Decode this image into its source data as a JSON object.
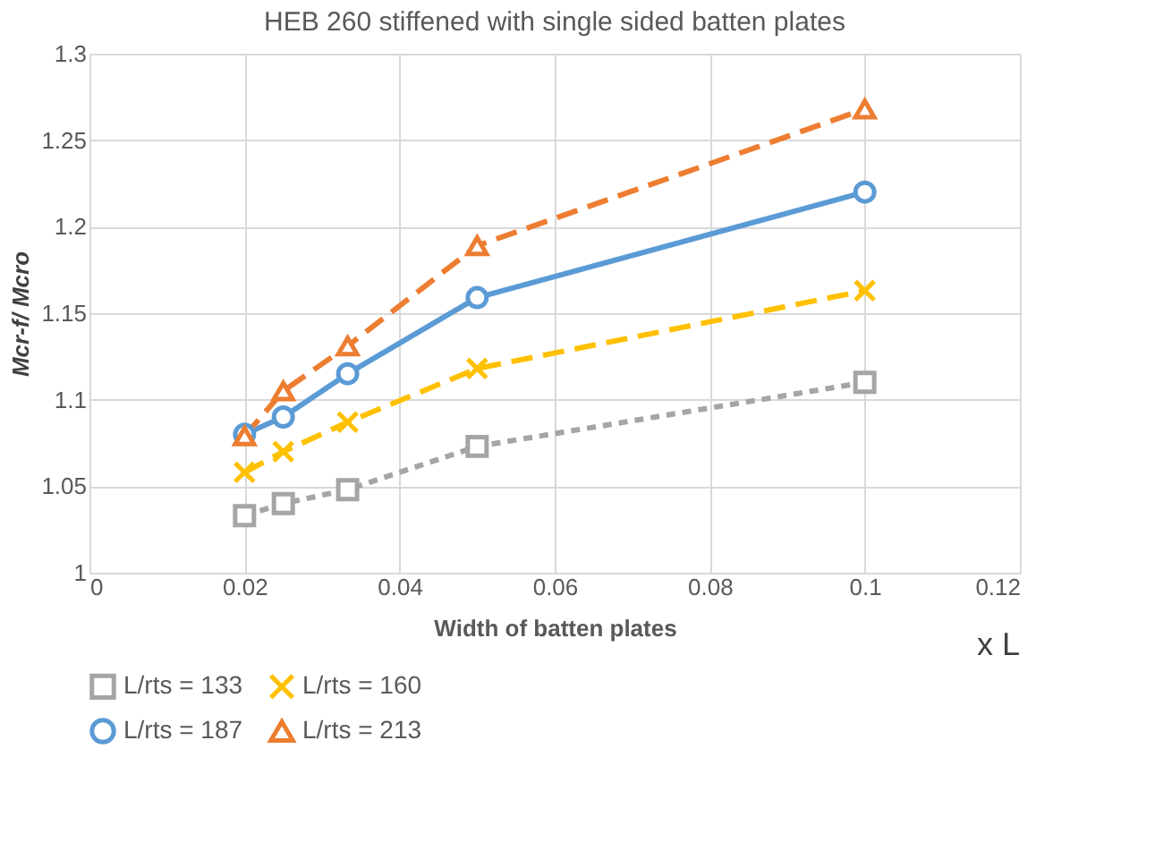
{
  "chart_data": {
    "type": "line",
    "title": "HEB 260 stiffened with single sided batten plates",
    "xlabel": "Width of batten plates",
    "ylabel": "Mcr-f/ Mcro",
    "x": [
      0.02,
      0.025,
      0.0333,
      0.05,
      0.1
    ],
    "series": [
      {
        "name": "L/rts = 133",
        "color": "#a5a5a5",
        "marker": "square",
        "line_style": "dotted",
        "values": [
          1.033,
          1.04,
          1.048,
          1.073,
          1.11
        ]
      },
      {
        "name": "L/rts = 160",
        "color": "#ffc000",
        "marker": "cross",
        "line_style": "dashed",
        "values": [
          1.058,
          1.07,
          1.087,
          1.118,
          1.163
        ]
      },
      {
        "name": "L/rts = 187",
        "color": "#5b9bd5",
        "marker": "circle",
        "line_style": "solid",
        "values": [
          1.08,
          1.09,
          1.115,
          1.159,
          1.22
        ]
      },
      {
        "name": "L/rts = 213",
        "color": "#ed7d31",
        "marker": "triangle",
        "line_style": "dashed",
        "values": [
          1.079,
          1.105,
          1.131,
          1.189,
          1.268
        ]
      }
    ],
    "xlim": [
      0,
      0.12
    ],
    "xticks": [
      0,
      0.02,
      0.04,
      0.06,
      0.08,
      0.1,
      0.12
    ],
    "ylim": [
      1,
      1.3
    ],
    "yticks": [
      1,
      1.05,
      1.1,
      1.15,
      1.2,
      1.25,
      1.3
    ],
    "annotations": [
      "x L"
    ],
    "grid": true,
    "legend": "bottom"
  }
}
